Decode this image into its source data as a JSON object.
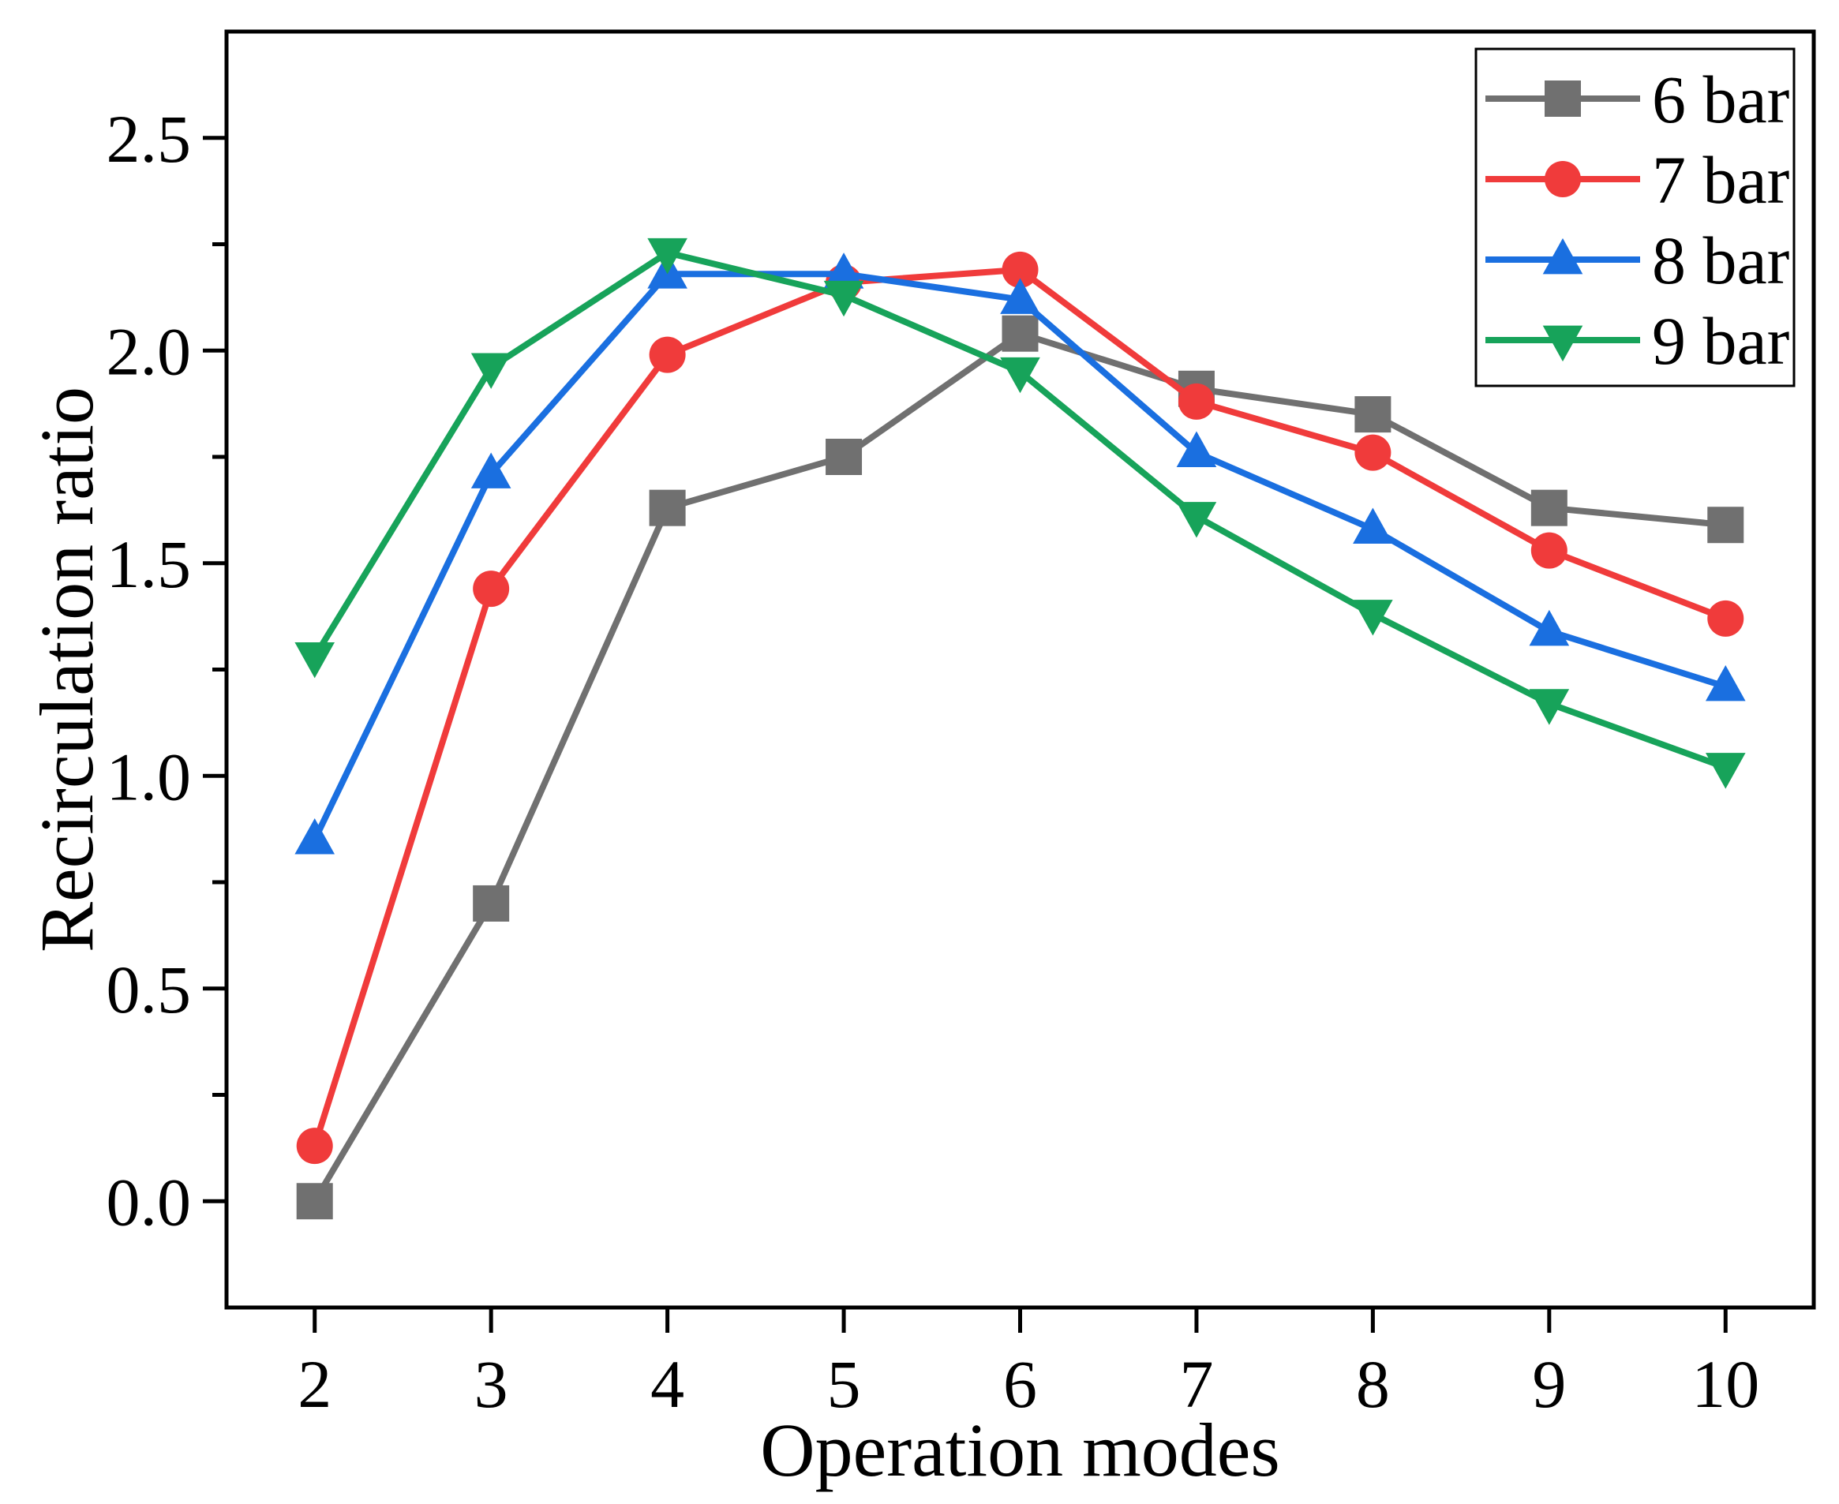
{
  "chart_data": {
    "type": "line",
    "title": "",
    "xlabel": "Operation modes",
    "ylabel": "Recirculation ratio",
    "x": [
      2,
      3,
      4,
      5,
      6,
      7,
      8,
      9,
      10
    ],
    "xlim": [
      1.5,
      10.5
    ],
    "ylim": [
      -0.25,
      2.75
    ],
    "xticks": [
      "2",
      "3",
      "4",
      "5",
      "6",
      "7",
      "8",
      "9",
      "10"
    ],
    "yticks": [
      "0.0",
      "0.5",
      "1.0",
      "1.5",
      "2.0",
      "2.5"
    ],
    "ytick_values": [
      0,
      0.5,
      1.0,
      1.5,
      2.0,
      2.5
    ],
    "grid": false,
    "legend_position": "top-right",
    "series": [
      {
        "name": "6 bar",
        "color": "#707070",
        "marker": "square",
        "values": [
          0.0,
          0.7,
          1.63,
          1.75,
          2.04,
          1.91,
          1.85,
          1.63,
          1.59
        ]
      },
      {
        "name": "7 bar",
        "color": "#f03b3b",
        "marker": "circle",
        "values": [
          0.13,
          1.44,
          1.99,
          2.16,
          2.19,
          1.88,
          1.76,
          1.53,
          1.37
        ]
      },
      {
        "name": "8 bar",
        "color": "#1a6fe0",
        "marker": "triangle-up",
        "values": [
          0.85,
          1.71,
          2.18,
          2.18,
          2.12,
          1.76,
          1.58,
          1.34,
          1.21
        ]
      },
      {
        "name": "9 bar",
        "color": "#17a35a",
        "marker": "triangle-down",
        "values": [
          1.28,
          1.96,
          2.23,
          2.13,
          1.95,
          1.61,
          1.38,
          1.17,
          1.02
        ]
      }
    ]
  }
}
